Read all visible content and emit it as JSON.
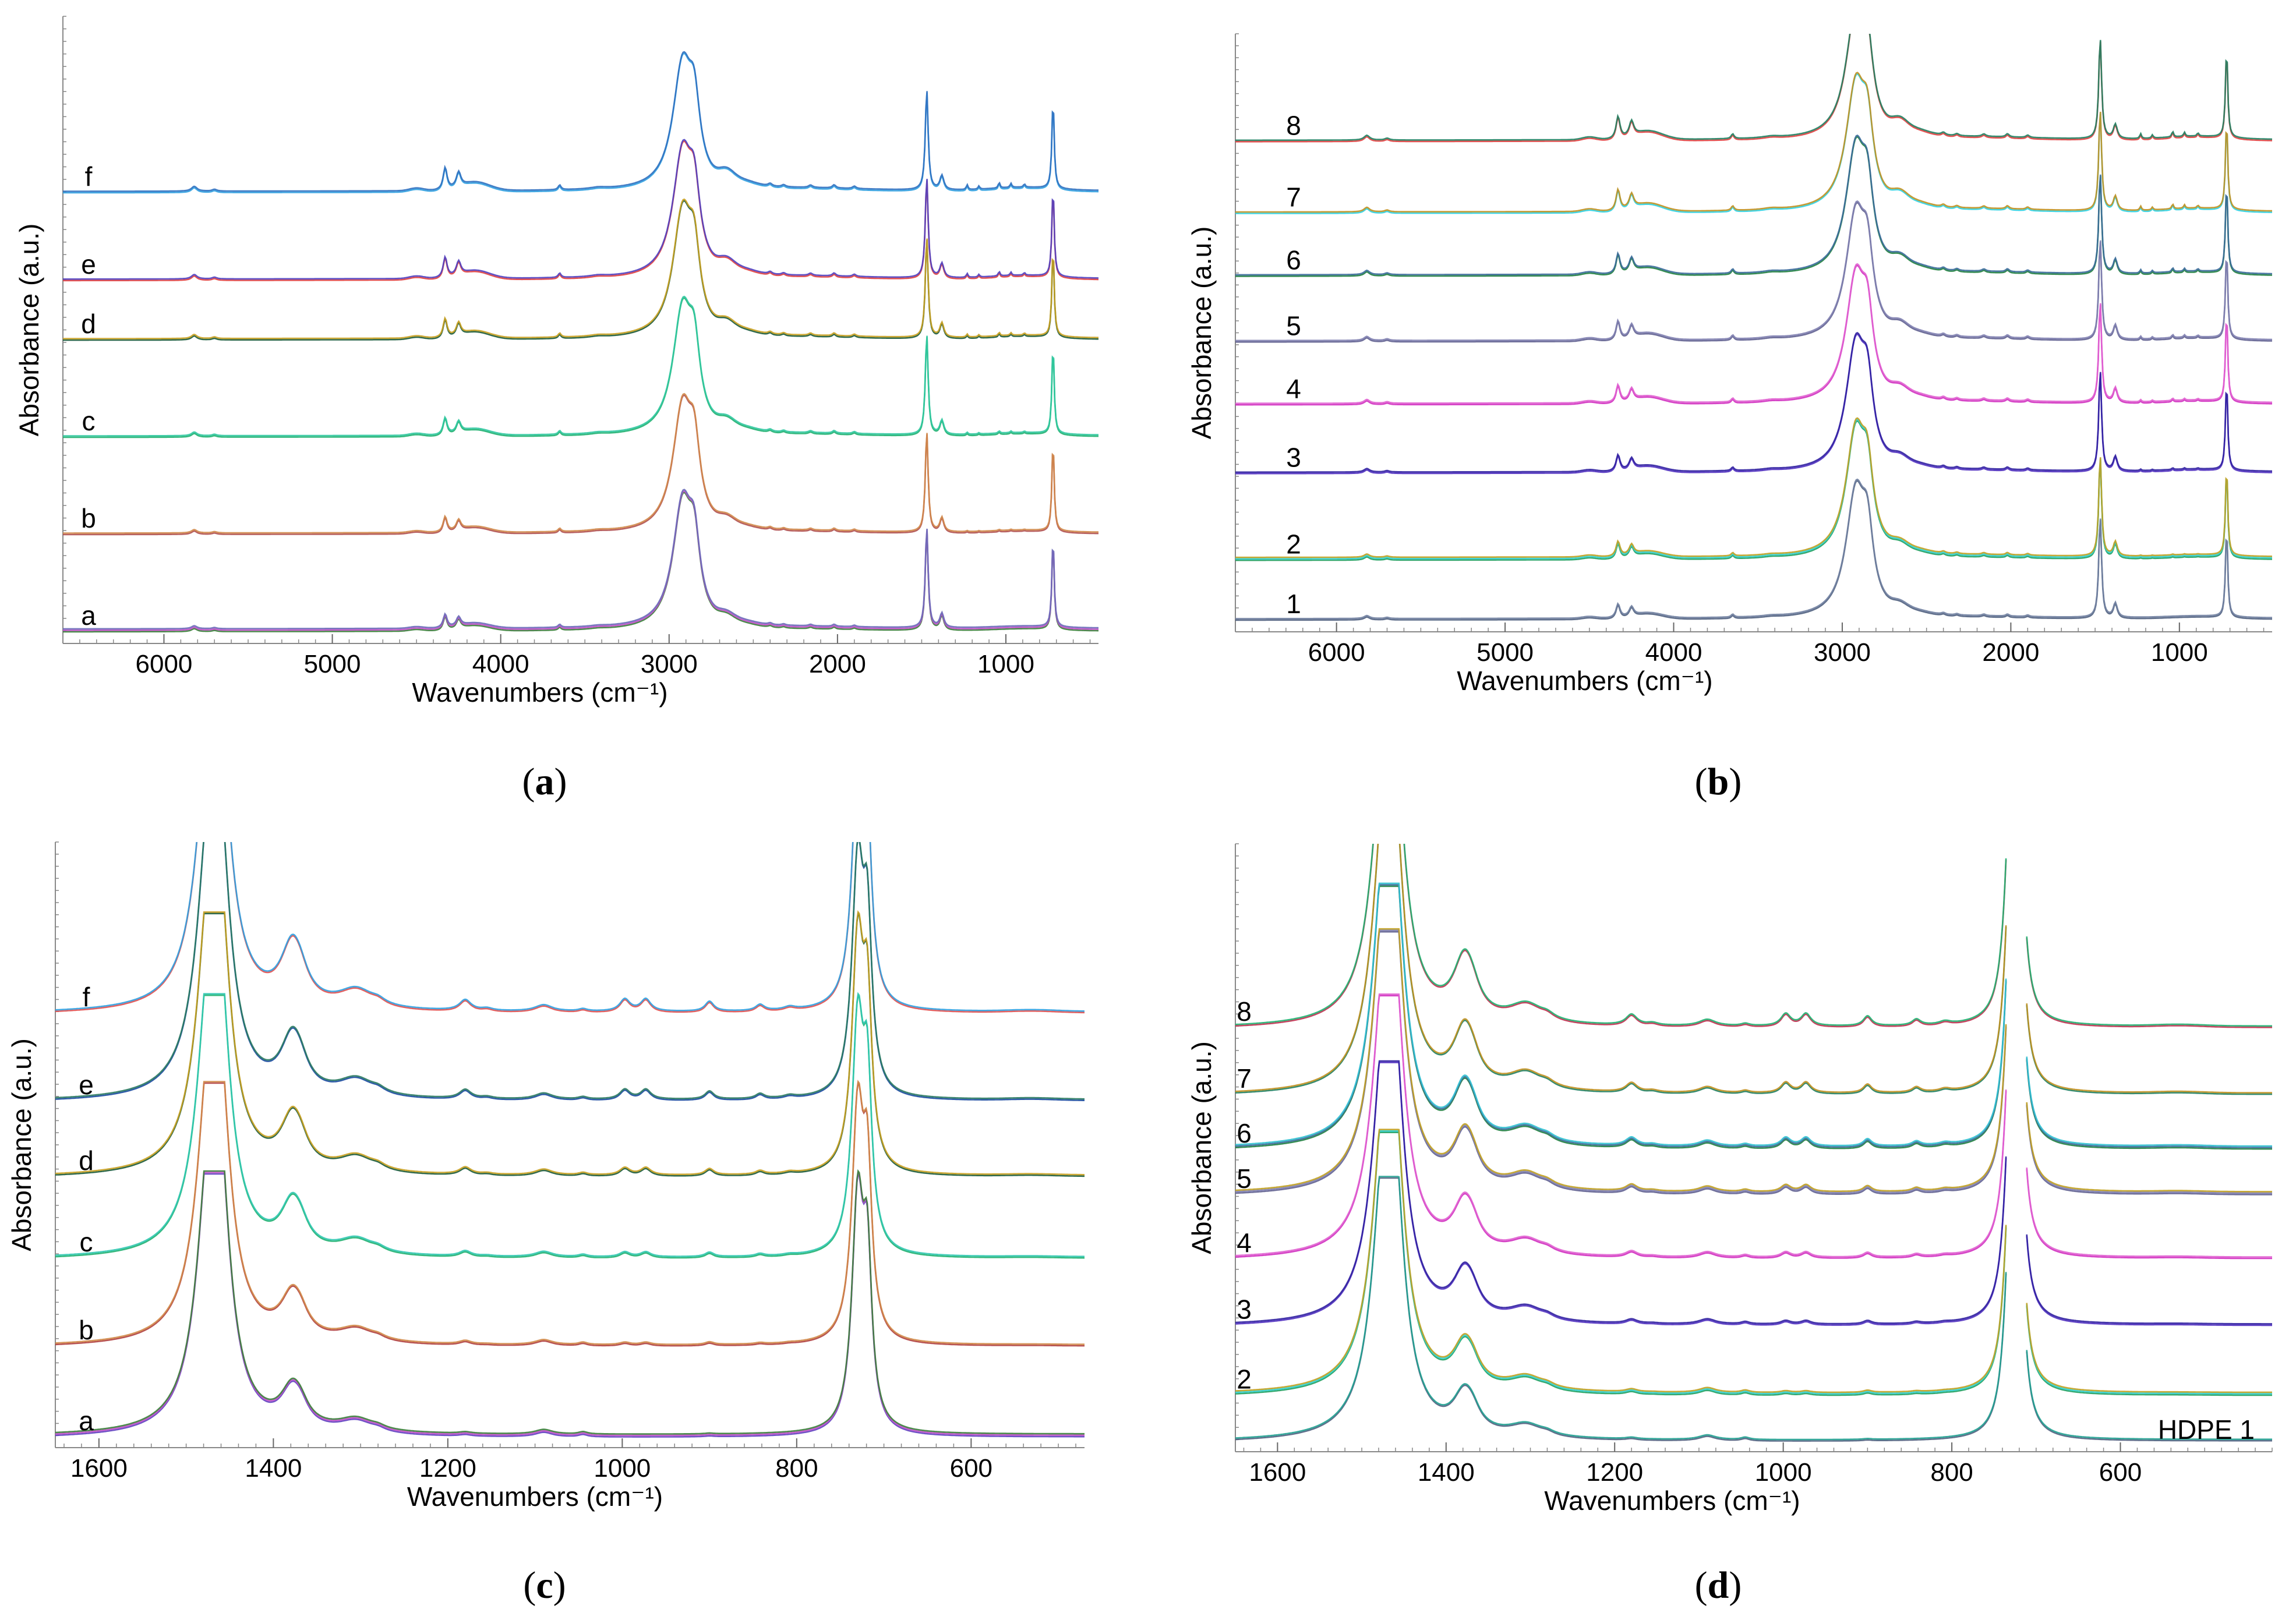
{
  "captions": [
    {
      "open": "(",
      "letter": "a",
      "close": ")"
    },
    {
      "open": "(",
      "letter": "b",
      "close": ")"
    },
    {
      "open": "(",
      "letter": "c",
      "close": ")"
    },
    {
      "open": "(",
      "letter": "d",
      "close": ")"
    }
  ],
  "chart_data": [
    {
      "type": "line",
      "panel": "a",
      "xlabel": "Wavenumbers (cm⁻¹)",
      "ylabel": "Absorbance  (a.u.)",
      "xlim": [
        6600,
        450
      ],
      "xticks": [
        6000,
        5000,
        4000,
        3000,
        2000,
        1000
      ],
      "series": [
        {
          "name": "a",
          "colors": [
            "#3a7e3a",
            "#c050c8",
            "#6a6ab8"
          ],
          "offset": 0.0
        },
        {
          "name": "b",
          "colors": [
            "#b05050",
            "#d0884a"
          ],
          "offset": 0.155
        },
        {
          "name": "c",
          "colors": [
            "#20b070",
            "#30c8a0"
          ],
          "offset": 0.31
        },
        {
          "name": "d",
          "colors": [
            "#1a5a3a",
            "#c8a020"
          ],
          "offset": 0.465
        },
        {
          "name": "e",
          "colors": [
            "#e04040",
            "#5040c0"
          ],
          "offset": 0.56
        },
        {
          "name": "f",
          "colors": [
            "#30a0e0",
            "#3070c0"
          ],
          "offset": 0.7
        }
      ]
    },
    {
      "type": "line",
      "panel": "b",
      "xlabel": "Wavenumbers (cm⁻¹)",
      "ylabel": "Absorbance  (a.u.)",
      "xlim": [
        6600,
        450
      ],
      "xticks": [
        6000,
        5000,
        4000,
        3000,
        2000,
        1000
      ],
      "series": [
        {
          "name": "1",
          "colors": [
            "#506080",
            "#7080a0"
          ],
          "offset": 0.0
        },
        {
          "name": "2",
          "colors": [
            "#20a060",
            "#30d0d0",
            "#c0a020"
          ],
          "offset": 0.1
        },
        {
          "name": "3",
          "colors": [
            "#5030c0",
            "#3020a0"
          ],
          "offset": 0.245
        },
        {
          "name": "4",
          "colors": [
            "#d030c0",
            "#e060d0"
          ],
          "offset": 0.36
        },
        {
          "name": "5",
          "colors": [
            "#606090",
            "#8080b0"
          ],
          "offset": 0.465
        },
        {
          "name": "6",
          "colors": [
            "#208040",
            "#3a6a9a"
          ],
          "offset": 0.575
        },
        {
          "name": "7",
          "colors": [
            "#30d0e0",
            "#c09020"
          ],
          "offset": 0.68
        },
        {
          "name": "8",
          "colors": [
            "#e04040",
            "#208060"
          ],
          "offset": 0.8
        }
      ]
    },
    {
      "type": "line",
      "panel": "c",
      "xlabel": "Wavenumbers (cm⁻¹)",
      "ylabel": "Absorbance  (a.u.)",
      "xlim": [
        1650,
        470
      ],
      "xticks": [
        1600,
        1400,
        1200,
        1000,
        800,
        600
      ],
      "series": [
        {
          "name": "a",
          "colors": [
            "#6040c0",
            "#c050c8",
            "#3a7e3a"
          ],
          "offset": 0.0
        },
        {
          "name": "b",
          "colors": [
            "#b04040",
            "#d08848"
          ],
          "offset": 0.15
        },
        {
          "name": "c",
          "colors": [
            "#20b070",
            "#30c8b0"
          ],
          "offset": 0.295
        },
        {
          "name": "d",
          "colors": [
            "#1a5a3a",
            "#c8a020"
          ],
          "offset": 0.43
        },
        {
          "name": "e",
          "colors": [
            "#1a4aa0",
            "#2a7a60"
          ],
          "offset": 0.555
        },
        {
          "name": "f",
          "colors": [
            "#e05050",
            "#30a0e0"
          ],
          "offset": 0.7
        }
      ]
    },
    {
      "type": "line",
      "panel": "d",
      "xlabel": "Wavenumbers (cm⁻¹)",
      "ylabel": "Absorbance  (a.u.)",
      "xlim": [
        1650,
        420
      ],
      "xticks": [
        1600,
        1400,
        1200,
        1000,
        800,
        600
      ],
      "annotation": "HDPE 1",
      "series": [
        {
          "name": "HDPE 1",
          "colors": [
            "#506080",
            "#20a090"
          ],
          "offset": 0.0,
          "label_visible": false
        },
        {
          "name": "2",
          "colors": [
            "#20a060",
            "#30d0d0",
            "#c0a020"
          ],
          "offset": 0.075
        },
        {
          "name": "3",
          "colors": [
            "#5030c0",
            "#3020a0"
          ],
          "offset": 0.19
        },
        {
          "name": "4",
          "colors": [
            "#d030c0",
            "#e060d0"
          ],
          "offset": 0.3
        },
        {
          "name": "5",
          "colors": [
            "#606090",
            "#8080b0",
            "#c0a020"
          ],
          "offset": 0.405
        },
        {
          "name": "6",
          "colors": [
            "#208040",
            "#3a6a9a",
            "#30c0d0"
          ],
          "offset": 0.48
        },
        {
          "name": "7",
          "colors": [
            "#208060",
            "#c09020"
          ],
          "offset": 0.57
        },
        {
          "name": "8",
          "colors": [
            "#c03050",
            "#20b070"
          ],
          "offset": 0.68
        }
      ]
    }
  ]
}
